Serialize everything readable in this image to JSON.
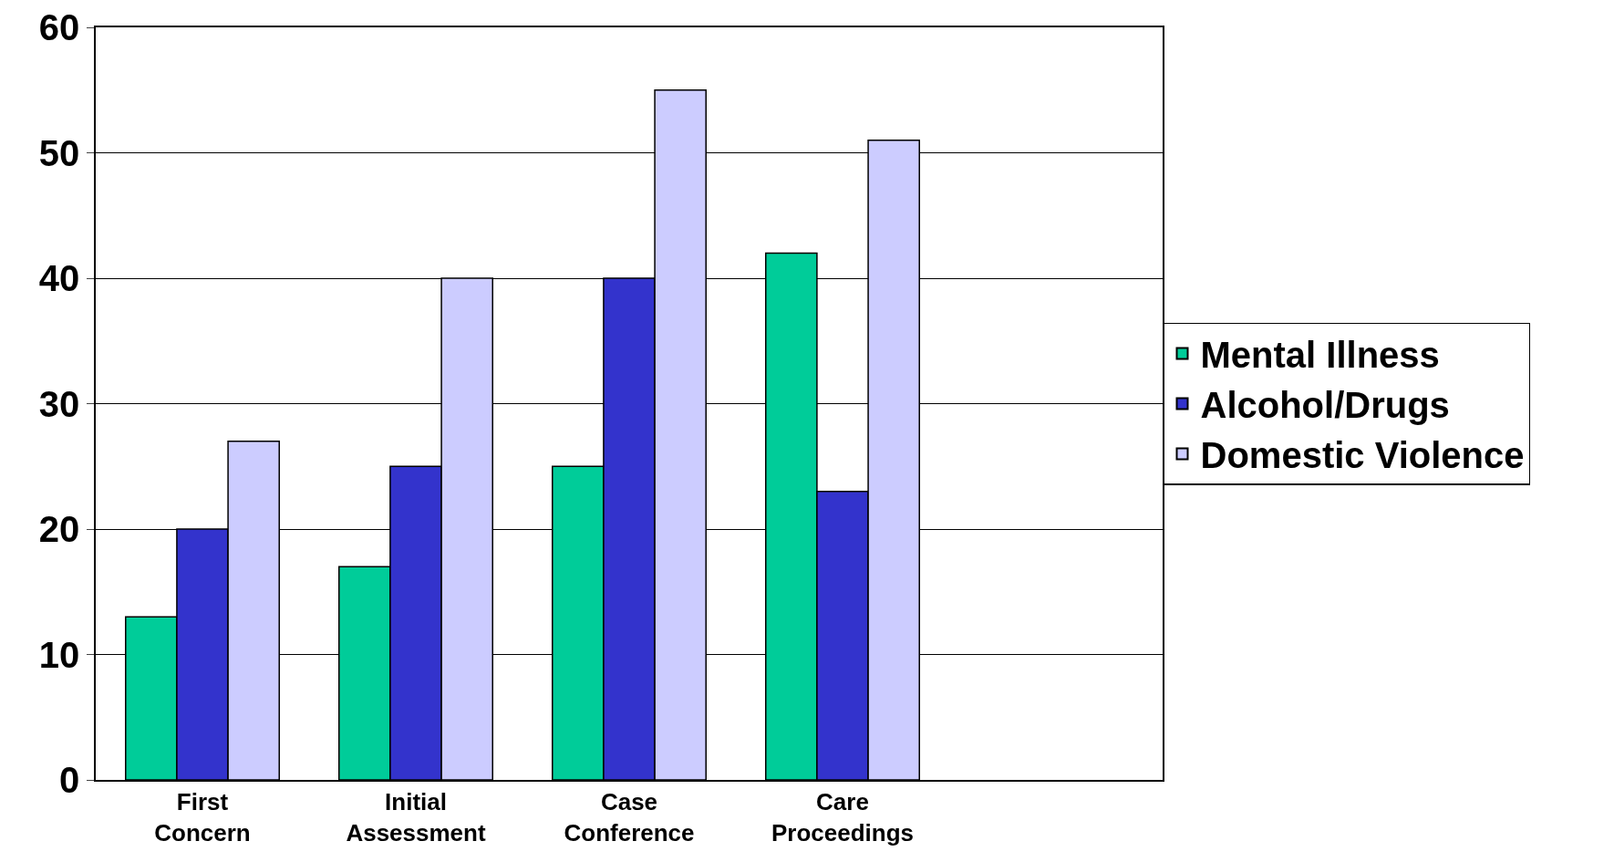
{
  "chart_data": {
    "type": "bar",
    "categories": [
      "First Concern",
      "Initial Assessment",
      "Case Conference",
      "Care Proceedings",
      null
    ],
    "series": [
      {
        "name": "Mental Illness",
        "color": "#00cc99",
        "values": [
          13,
          17,
          25,
          42,
          null
        ]
      },
      {
        "name": "Alcohol/Drugs",
        "color": "#3333cc",
        "values": [
          20,
          25,
          40,
          23,
          null
        ]
      },
      {
        "name": "Domestic Violence",
        "color": "#ccccff",
        "values": [
          27,
          40,
          55,
          51,
          null
        ]
      }
    ],
    "ylim": [
      0,
      60
    ],
    "yticks": [
      0,
      10,
      20,
      30,
      40,
      50,
      60
    ],
    "grid": "y",
    "legend": "right"
  }
}
